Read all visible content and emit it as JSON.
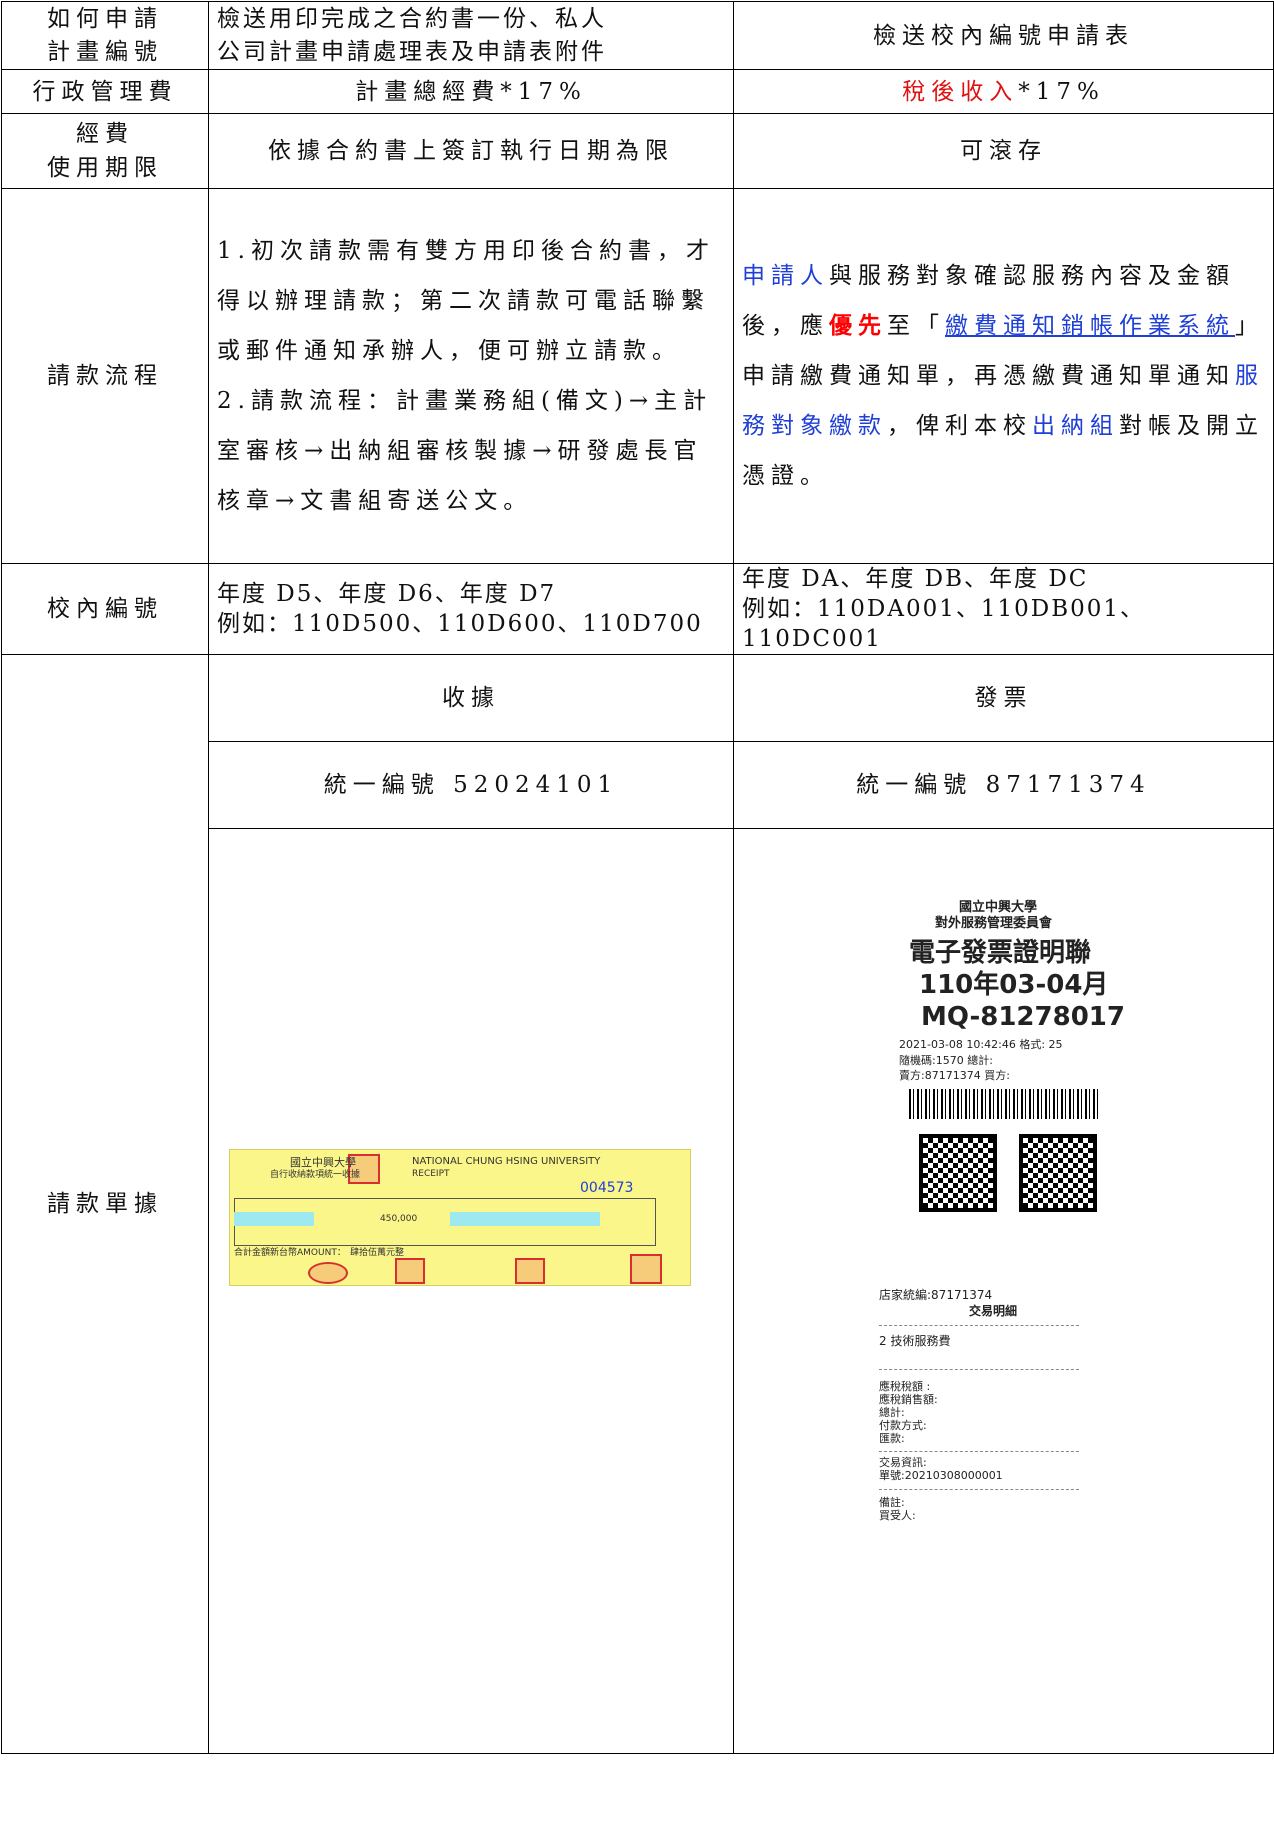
{
  "table": {
    "rows": [
      {
        "label": [
          "如何申請",
          "計畫編號"
        ],
        "col1": [
          "檢送用印完成之合約書一份、私人",
          "公司計畫申請處理表及申請表附件"
        ],
        "col2": "檢送校內編號申請表"
      },
      {
        "label": "行政管理費",
        "col1": "計畫總經費*17%",
        "col2": [
          "稅後收入",
          "*17%"
        ]
      },
      {
        "label": [
          "經費",
          "使用期限"
        ],
        "col1": "依據合約書上簽訂執行日期為限",
        "col2": "可滾存"
      },
      {
        "label": "請款流程",
        "col1": [
          "1.初次請款需有雙方用印後合約書，才得以辦理請款；第二次請款可電話聯繫或郵件通知承辦人，便可辦立請款。",
          "2.請款流程：計畫業務組(備文)→主計室審核→出納組審核製據→研發處長官核章→文書組寄送公文。"
        ],
        "col2": [
          "申請人",
          "與服務對象確認服務內容及金額後，應",
          "優先",
          "至「",
          "繳費通知銷帳作業系統",
          "」申請繳費通知單，再憑繳費通知單通知",
          "服務對象繳款",
          "，俾利本校",
          "出納組",
          "對帳及開立憑證。"
        ]
      },
      {
        "label": "校內編號",
        "col1": [
          "年度 D5、年度 D6、年度 D7",
          "例如：110D500、110D600、110D700"
        ],
        "col2": [
          "年度 DA、年度 DB、年度 DC",
          "例如：110DA001、110DB001、110DC001"
        ]
      },
      {
        "label": "請款單據",
        "col1": [
          "收據",
          "統一編號 52024101"
        ],
        "col2": [
          "發票",
          "統一編號 87171374"
        ]
      }
    ]
  },
  "receipt": [
    "國立中興大學",
    "自行收納款項統一收據",
    "NATIONAL CHUNG HSING UNIVERSITY",
    "RECEIPT",
    "004573",
    "450,000",
    "合計金額新台幣AMOUNT：",
    "肆拾伍萬元整"
  ],
  "invoice": [
    "國立中興大學",
    "對外服務管理委員會",
    "電子發票證明聯",
    "110年03-04月",
    "MQ-81278017",
    "2021-03-08 10:42:46 格式: 25",
    "隨機碼:1570 總計:",
    "賣方:87171374 買方:",
    "店家統編:87171374",
    "交易明細",
    "2 技術服務費",
    "應稅稅額 :",
    "應稅銷售額:",
    "總計:",
    "付款方式:",
    "匯款:",
    "交易資訊:",
    "單號:20210308000001",
    "備註:",
    "買受人:"
  ]
}
